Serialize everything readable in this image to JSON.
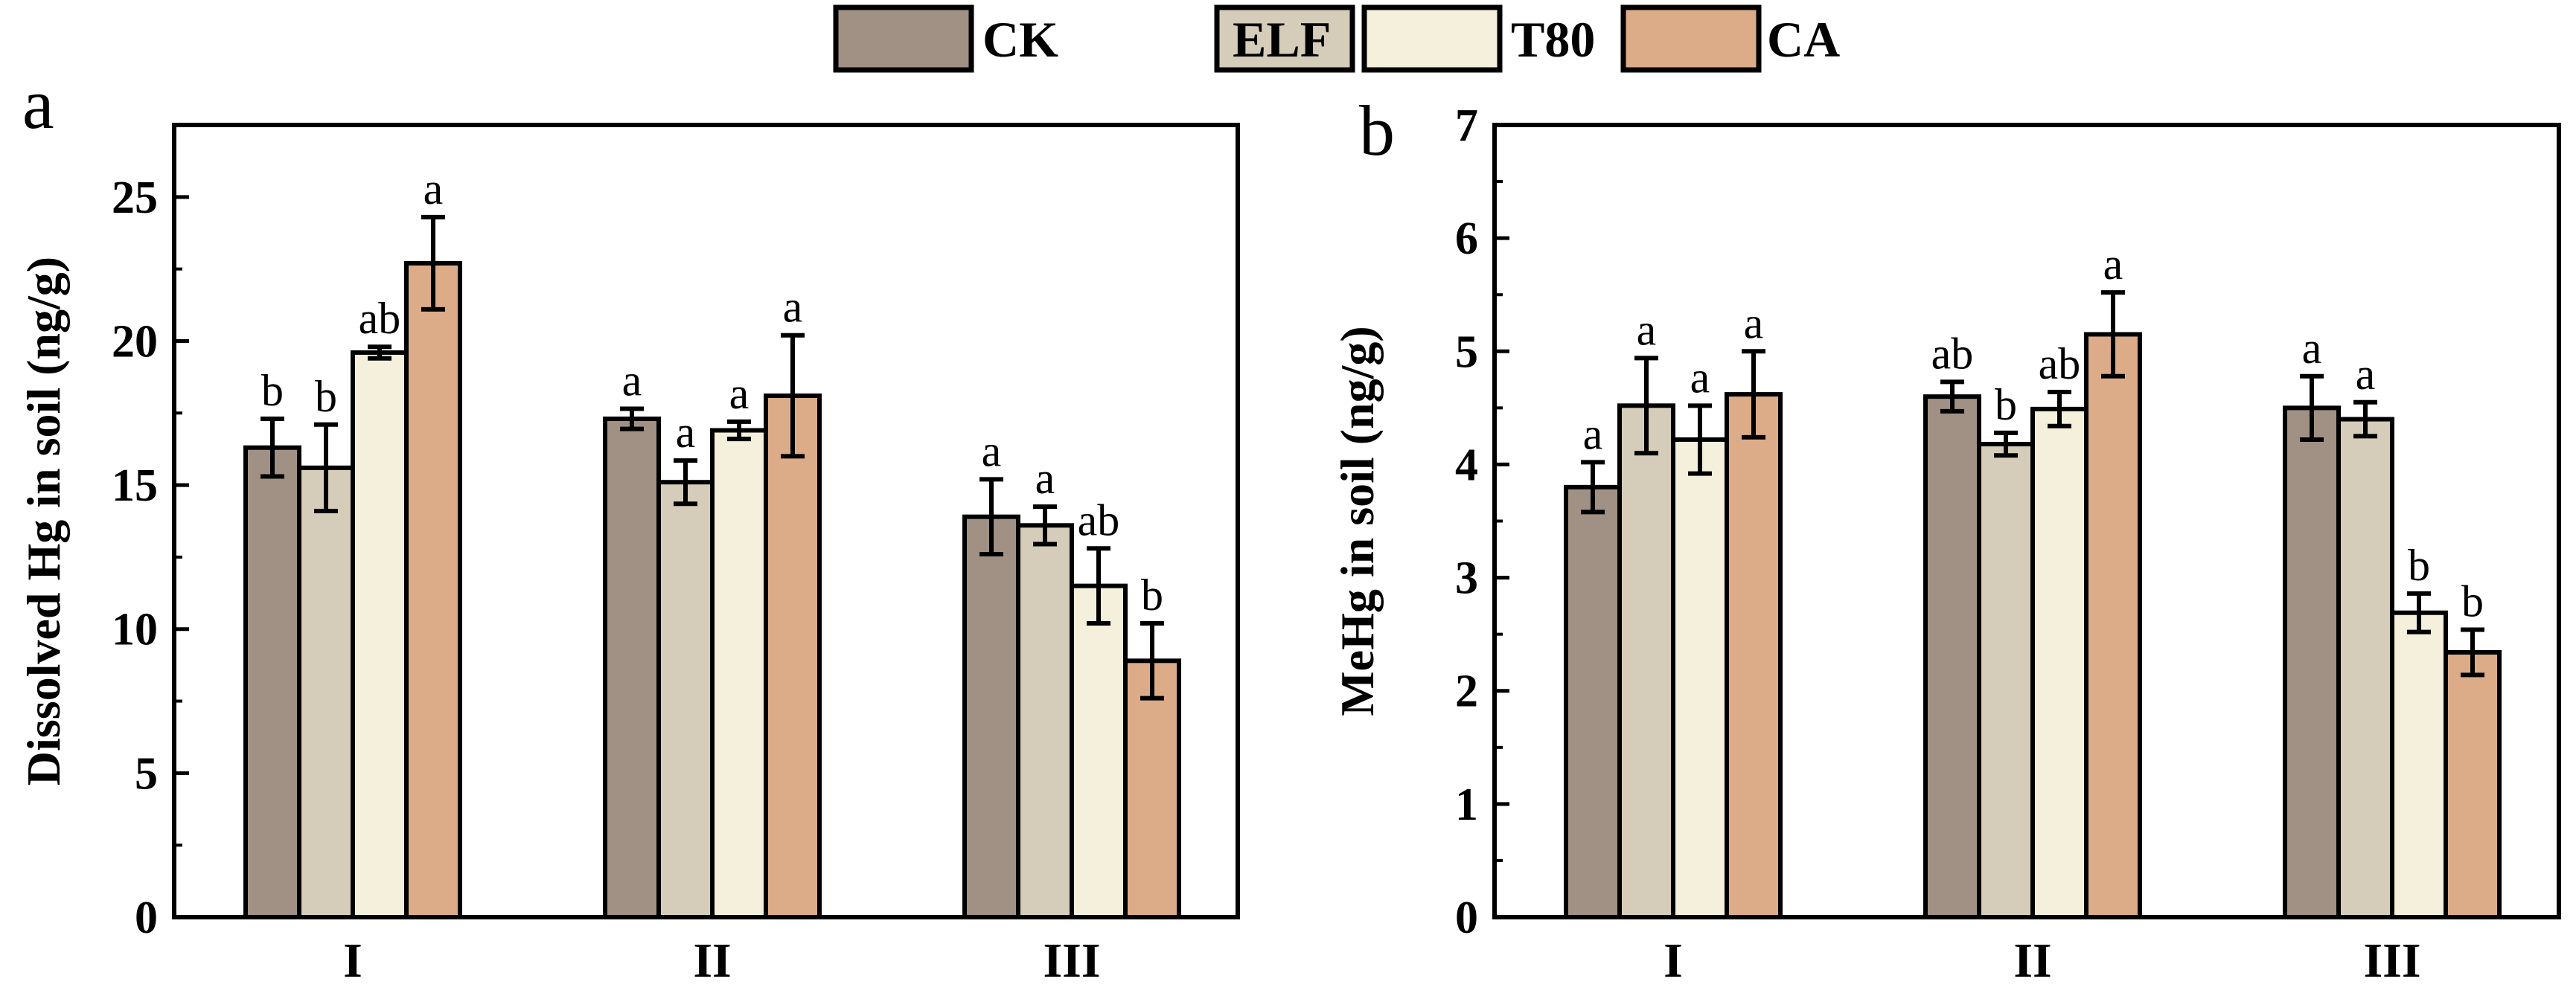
{
  "legend": {
    "items": [
      {
        "name": "CK",
        "color": "#a09184"
      },
      {
        "name": "ELF",
        "color": "#d5ccba"
      },
      {
        "name": "T80",
        "color": "#f5f0dc"
      },
      {
        "name": "CA",
        "color": "#dcac89"
      }
    ]
  },
  "chart_data": [
    {
      "type": "bar",
      "panel": "a",
      "ylabel": "Dissolved Hg in soil (ng/g)",
      "xlabel": "",
      "categories": [
        "I",
        "II",
        "III"
      ],
      "ylim": [
        0,
        27.5
      ],
      "yticks": [
        0,
        5,
        10,
        15,
        20,
        25
      ],
      "series": [
        {
          "name": "CK",
          "values": [
            16.3,
            17.3,
            13.9
          ],
          "errors": [
            1.0,
            0.35,
            1.3
          ],
          "labels": [
            "b",
            "a",
            "a"
          ]
        },
        {
          "name": "ELF",
          "values": [
            15.6,
            15.1,
            13.6
          ],
          "errors": [
            1.5,
            0.75,
            0.65
          ],
          "labels": [
            "b",
            "a",
            "a"
          ]
        },
        {
          "name": "T80",
          "values": [
            19.6,
            16.9,
            11.5
          ],
          "errors": [
            0.2,
            0.3,
            1.3
          ],
          "labels": [
            "ab",
            "a",
            "ab"
          ]
        },
        {
          "name": "CA",
          "values": [
            22.7,
            18.1,
            8.9
          ],
          "errors": [
            1.6,
            2.1,
            1.3
          ],
          "labels": [
            "a",
            "a",
            "b"
          ]
        }
      ]
    },
    {
      "type": "bar",
      "panel": "b",
      "ylabel": "MeHg in soil (ng/g)",
      "xlabel": "",
      "categories": [
        "I",
        "II",
        "III"
      ],
      "ylim": [
        0,
        7
      ],
      "yticks": [
        0,
        1,
        2,
        3,
        4,
        5,
        6,
        7
      ],
      "series": [
        {
          "name": "CK",
          "values": [
            3.8,
            4.6,
            4.5
          ],
          "errors": [
            0.22,
            0.13,
            0.28
          ],
          "labels": [
            "a",
            "ab",
            "a"
          ]
        },
        {
          "name": "ELF",
          "values": [
            4.52,
            4.18,
            4.4
          ],
          "errors": [
            0.42,
            0.1,
            0.15
          ],
          "labels": [
            "a",
            "b",
            "a"
          ]
        },
        {
          "name": "T80",
          "values": [
            4.22,
            4.49,
            2.69
          ],
          "errors": [
            0.3,
            0.15,
            0.17
          ],
          "labels": [
            "a",
            "ab",
            "b"
          ]
        },
        {
          "name": "CA",
          "values": [
            4.62,
            5.15,
            2.34
          ],
          "errors": [
            0.38,
            0.37,
            0.2
          ],
          "labels": [
            "a",
            "a",
            "b"
          ]
        }
      ]
    }
  ]
}
